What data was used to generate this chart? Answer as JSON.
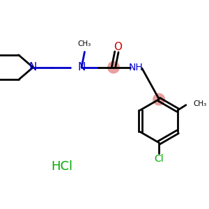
{
  "background_color": "#ffffff",
  "bond_color": "#000000",
  "nitrogen_color": "#0000cc",
  "oxygen_color": "#cc0000",
  "chlorine_color": "#00aa00",
  "hcl_color": "#00aa00",
  "pink_highlight": "#e8a0a0",
  "figsize": [
    3.0,
    3.0
  ],
  "dpi": 100,
  "xlim": [
    0,
    10
  ],
  "ylim": [
    0,
    10
  ]
}
